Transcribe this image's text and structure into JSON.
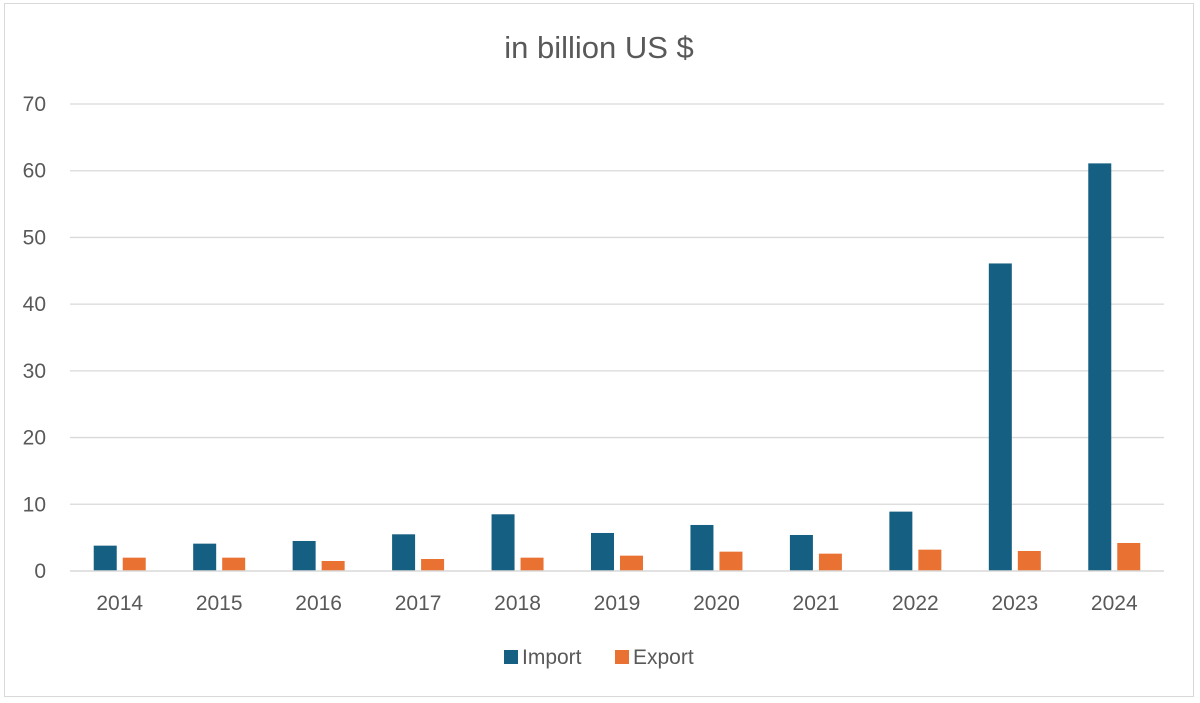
{
  "chart_data": {
    "type": "bar",
    "title": "in billion US $",
    "xlabel": "",
    "ylabel": "",
    "categories": [
      "2014",
      "2015",
      "2016",
      "2017",
      "2018",
      "2019",
      "2020",
      "2021",
      "2022",
      "2023",
      "2024"
    ],
    "series": [
      {
        "name": "Import",
        "color": "#156082",
        "values": [
          3.8,
          4.1,
          4.5,
          5.5,
          8.5,
          5.7,
          6.9,
          5.4,
          8.9,
          46.1,
          61.1
        ]
      },
      {
        "name": "Export",
        "color": "#E97132",
        "values": [
          2.0,
          2.0,
          1.5,
          1.8,
          2.0,
          2.3,
          2.9,
          2.6,
          3.2,
          3.0,
          4.2
        ]
      }
    ],
    "ylim": [
      0,
      70
    ],
    "yticks": [
      0,
      10,
      20,
      30,
      40,
      50,
      60,
      70
    ],
    "grid": true,
    "legend_position": "bottom"
  }
}
